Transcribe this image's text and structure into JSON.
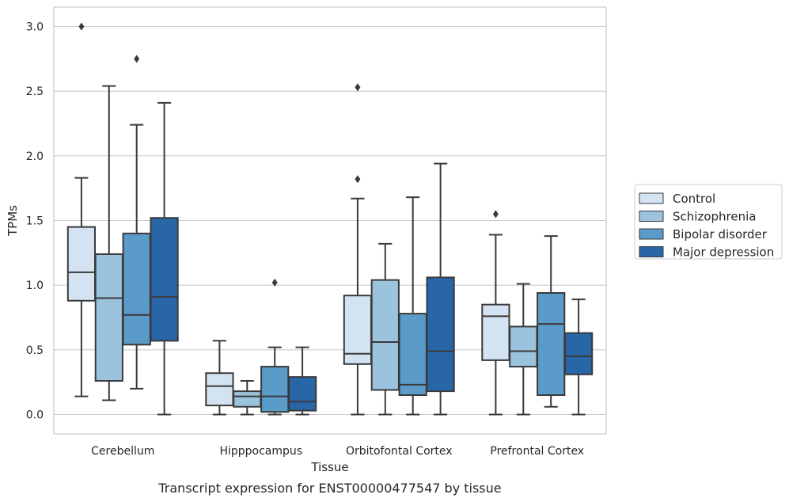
{
  "chart_data": {
    "type": "box",
    "xlabel": "Tissue",
    "ylabel": "TPMs",
    "caption": "Transcript expression for ENST00000477547 by tissue",
    "ylim": [
      -0.15,
      3.15
    ],
    "yticks": [
      "0.0",
      "0.5",
      "1.0",
      "1.5",
      "2.0",
      "2.5",
      "3.0"
    ],
    "grid": "horizontal",
    "legend_position": "right",
    "categories": [
      "Cerebellum",
      "Hipppocampus",
      "Orbitofontal Cortex",
      "Prefrontal Cortex"
    ],
    "series": [
      {
        "name": "Control",
        "color": "#d3e3f2",
        "boxes": [
          {
            "whislo": 0.14,
            "q1": 0.88,
            "med": 1.1,
            "q3": 1.45,
            "whishi": 1.83,
            "fliers": [
              3.0
            ]
          },
          {
            "whislo": 0.0,
            "q1": 0.07,
            "med": 0.22,
            "q3": 0.32,
            "whishi": 0.57,
            "fliers": []
          },
          {
            "whislo": 0.0,
            "q1": 0.39,
            "med": 0.47,
            "q3": 0.92,
            "whishi": 1.67,
            "fliers": [
              1.82,
              2.53
            ]
          },
          {
            "whislo": 0.0,
            "q1": 0.42,
            "med": 0.76,
            "q3": 0.85,
            "whishi": 1.39,
            "fliers": [
              1.55
            ]
          }
        ]
      },
      {
        "name": "Schizophrenia",
        "color": "#9cc3de",
        "boxes": [
          {
            "whislo": 0.11,
            "q1": 0.26,
            "med": 0.9,
            "q3": 1.24,
            "whishi": 2.54,
            "fliers": []
          },
          {
            "whislo": 0.0,
            "q1": 0.06,
            "med": 0.14,
            "q3": 0.18,
            "whishi": 0.26,
            "fliers": []
          },
          {
            "whislo": 0.0,
            "q1": 0.19,
            "med": 0.56,
            "q3": 1.04,
            "whishi": 1.32,
            "fliers": []
          },
          {
            "whislo": 0.0,
            "q1": 0.37,
            "med": 0.49,
            "q3": 0.68,
            "whishi": 1.01,
            "fliers": []
          }
        ]
      },
      {
        "name": "Bipolar disorder",
        "color": "#5a9bca",
        "boxes": [
          {
            "whislo": 0.2,
            "q1": 0.54,
            "med": 0.77,
            "q3": 1.4,
            "whishi": 2.24,
            "fliers": [
              2.75
            ]
          },
          {
            "whislo": 0.0,
            "q1": 0.02,
            "med": 0.14,
            "q3": 0.37,
            "whishi": 0.52,
            "fliers": [
              1.02
            ]
          },
          {
            "whislo": 0.0,
            "q1": 0.15,
            "med": 0.23,
            "q3": 0.78,
            "whishi": 1.68,
            "fliers": []
          },
          {
            "whislo": 0.06,
            "q1": 0.15,
            "med": 0.7,
            "q3": 0.94,
            "whishi": 1.38,
            "fliers": []
          }
        ]
      },
      {
        "name": "Major depression",
        "color": "#2966a8",
        "boxes": [
          {
            "whislo": 0.0,
            "q1": 0.57,
            "med": 0.91,
            "q3": 1.52,
            "whishi": 2.41,
            "fliers": []
          },
          {
            "whislo": 0.0,
            "q1": 0.03,
            "med": 0.1,
            "q3": 0.29,
            "whishi": 0.52,
            "fliers": []
          },
          {
            "whislo": 0.0,
            "q1": 0.18,
            "med": 0.49,
            "q3": 1.06,
            "whishi": 1.94,
            "fliers": []
          },
          {
            "whislo": 0.0,
            "q1": 0.31,
            "med": 0.45,
            "q3": 0.63,
            "whishi": 0.89,
            "fliers": []
          }
        ]
      }
    ]
  }
}
